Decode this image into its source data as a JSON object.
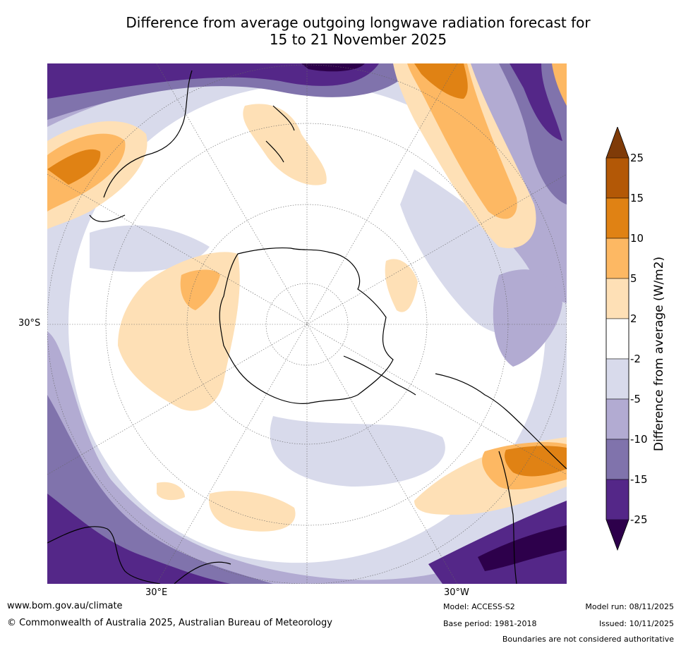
{
  "title": {
    "line1": "Difference from average outgoing longwave radiation forecast for",
    "line2": "15 to 21 November 2025"
  },
  "axes": {
    "lat_label": "30°S",
    "lon_labels": [
      "30°E",
      "30°W"
    ]
  },
  "colorbar": {
    "title": "Difference from average (W/m2)",
    "ticks": [
      "25",
      "15",
      "10",
      "5",
      "2",
      "-2",
      "-5",
      "-10",
      "-15",
      "-25"
    ],
    "colors": {
      "over": "#7f3b08",
      "b15_25": "#b35806",
      "b10_15": "#e08214",
      "b5_10": "#fdb863",
      "b2_5": "#fee0b6",
      "neutral": "#ffffff",
      "n2_5": "#d8daeb",
      "n5_10": "#b2abd2",
      "n10_15": "#8073ac",
      "n15_25": "#542788",
      "under": "#2d004b"
    }
  },
  "footer": {
    "website": "www.bom.gov.au/climate",
    "copyright": "© Commonwealth of Australia 2025, Australian Bureau of Meteorology",
    "model": "Model: ACCESS-S2",
    "base_period": "Base period: 1981-2018",
    "model_run": "Model run: 08/11/2025",
    "issued": "Issued: 10/11/2025",
    "disclaimer": "Boundaries are not considered authoritative"
  }
}
